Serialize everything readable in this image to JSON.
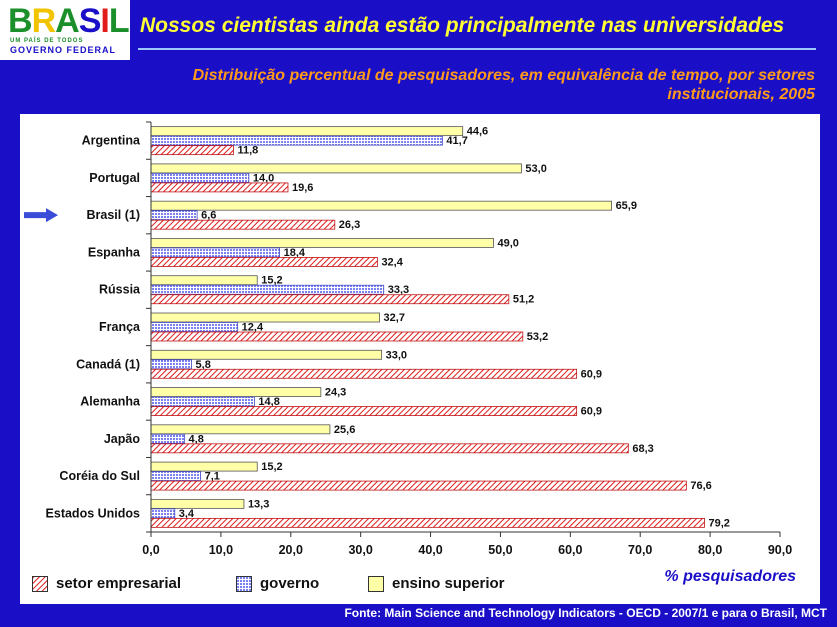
{
  "logo": {
    "word": [
      "B",
      "R",
      "A",
      "S",
      "I",
      "L"
    ],
    "word_colors": [
      "#1a8f2a",
      "#f2c400",
      "#1a8f2a",
      "#1a0fc7",
      "#e21b1b",
      "#1a8f2a"
    ],
    "tagline": "UM PAÍS DE TODOS",
    "government": "GOVERNO FEDERAL"
  },
  "header": {
    "title": "Nossos cientistas ainda estão principalmente nas universidades",
    "subtitle_line1": "Distribuição percentual de pesquisadores, em equivalência de tempo, por setores",
    "subtitle_line2": "institucionais, 2005"
  },
  "colors": {
    "background": "#1a0fc7",
    "title": "#ffff33",
    "subtitle": "#ff9a1a",
    "ensino": "#ffffa8",
    "governo": "#9aa0ff",
    "empresarial": "#e01b1b",
    "highlight_arrow": "#3a4cd8"
  },
  "chart_data": {
    "type": "bar",
    "orientation": "horizontal",
    "categories": [
      "Argentina",
      "Portugal",
      "Brasil (1)",
      "Espanha",
      "Rússia",
      "França",
      "Canadá (1)",
      "Alemanha",
      "Japão",
      "Coréia do Sul",
      "Estados Unidos"
    ],
    "highlighted_category": "Brasil (1)",
    "series": [
      {
        "name": "ensino superior",
        "values": [
          44.6,
          53.0,
          65.9,
          49.0,
          15.2,
          32.7,
          33.0,
          24.3,
          25.6,
          15.2,
          13.3
        ],
        "labels": [
          "44,6",
          "53,0",
          "65,9",
          "49,0",
          "15,2",
          "32,7",
          "33,0",
          "24,3",
          "25,6",
          "15,2",
          "13,3"
        ]
      },
      {
        "name": "governo",
        "values": [
          41.7,
          14.0,
          6.6,
          18.4,
          33.3,
          12.4,
          5.8,
          14.8,
          4.8,
          7.1,
          3.4
        ],
        "labels": [
          "41,7",
          "14,0",
          "6,6",
          "18,4",
          "33,3",
          "12,4",
          "5,8",
          "14,8",
          "4,8",
          "7,1",
          "3,4"
        ]
      },
      {
        "name": "setor empresarial",
        "values": [
          11.8,
          19.6,
          26.3,
          32.4,
          51.2,
          53.2,
          60.9,
          60.9,
          68.3,
          76.6,
          79.2
        ],
        "labels": [
          "11,8",
          "19,6",
          "26,3",
          "32,4",
          "51,2",
          "53,2",
          "60,9",
          "60,9",
          "68,3",
          "76,6",
          "79,2"
        ]
      }
    ],
    "xlim": [
      0,
      90
    ],
    "xticks": [
      0,
      10,
      20,
      30,
      40,
      50,
      60,
      70,
      80,
      90
    ],
    "xtick_labels": [
      "0,0",
      "10,0",
      "20,0",
      "30,0",
      "40,0",
      "50,0",
      "60,0",
      "70,0",
      "80,0",
      "90,0"
    ],
    "xlabel": "% pesquisadores",
    "grid": false,
    "legend_order": [
      "setor empresarial",
      "governo",
      "ensino superior"
    ],
    "legend_placement": "bottom"
  },
  "source": "Fonte: Main Science and Technology Indicators - OECD - 2007/1 e para o Brasil, MCT"
}
